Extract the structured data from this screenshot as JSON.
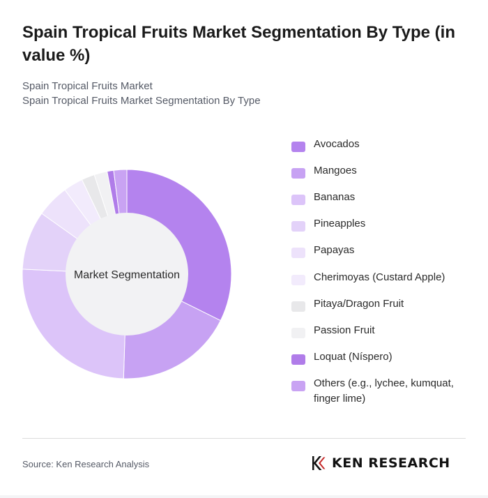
{
  "header": {
    "title": "Spain Tropical Fruits Market Segmentation By Type (in value %)",
    "subtitle_line1": "Spain Tropical Fruits Market",
    "subtitle_line2": "Spain Tropical Fruits Market Segmentation By Type"
  },
  "chart_data": {
    "type": "pie",
    "variant": "donut",
    "center_label": "Market Segmentation",
    "legend_position": "right",
    "categories": [
      "Avocados",
      "Mangoes",
      "Bananas",
      "Pineapples",
      "Papayas",
      "Cherimoyas (Custard Apple)",
      "Pitaya/Dragon Fruit",
      "Passion Fruit",
      "Loquat (Níspero)",
      "Others (e.g., lychee, kumquat, finger lime)"
    ],
    "values": [
      32,
      18,
      25,
      9,
      5,
      3,
      2,
      2,
      1,
      2
    ],
    "colors": [
      "#b483ee",
      "#c7a2f3",
      "#dcc4f9",
      "#e3d2f9",
      "#ede2fb",
      "#f2ebfc",
      "#e8e8ea",
      "#f1f1f3",
      "#b07ce9",
      "#c9a3f3"
    ]
  },
  "footer": {
    "source": "Source: Ken Research Analysis",
    "logo_text": "KEN RESEARCH",
    "logo_icon": "ken-research-k-logo-icon"
  }
}
